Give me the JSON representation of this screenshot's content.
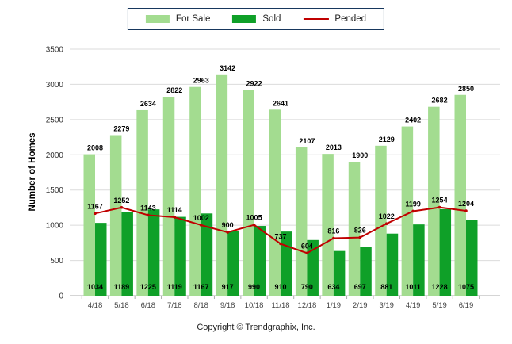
{
  "legend": {
    "border_color": "#17375D",
    "items": [
      {
        "label": "For Sale",
        "swatch": "bar",
        "color": "#A3DC90"
      },
      {
        "label": "Sold",
        "swatch": "bar",
        "color": "#0FA028"
      },
      {
        "label": "Pended",
        "swatch": "line",
        "color": "#C00000"
      }
    ]
  },
  "chart_data": {
    "type": "bar",
    "title": "",
    "categories": [
      "4/18",
      "5/18",
      "6/18",
      "7/18",
      "8/18",
      "9/18",
      "10/18",
      "11/18",
      "12/18",
      "1/19",
      "2/19",
      "3/19",
      "4/19",
      "5/19",
      "6/19"
    ],
    "series": [
      {
        "name": "For Sale",
        "type": "bar",
        "color": "#A3DC90",
        "label_position": "above",
        "values": [
          2008,
          2279,
          2634,
          2822,
          2963,
          3142,
          2922,
          2641,
          2107,
          2013,
          1900,
          2129,
          2402,
          2682,
          2850
        ]
      },
      {
        "name": "Sold",
        "type": "bar",
        "color": "#0FA028",
        "label_position": "base",
        "values": [
          1034,
          1189,
          1225,
          1119,
          1167,
          917,
          990,
          910,
          790,
          634,
          697,
          881,
          1011,
          1228,
          1075
        ]
      },
      {
        "name": "Pended",
        "type": "line",
        "color": "#C00000",
        "label_position": "above",
        "values": [
          1167,
          1252,
          1143,
          1114,
          1002,
          900,
          1005,
          737,
          604,
          816,
          826,
          1022,
          1199,
          1254,
          1204
        ]
      }
    ],
    "xlabel": "",
    "ylabel": "Number of Homes",
    "ylim": [
      0,
      3500
    ],
    "ytick_step": 500,
    "grid": true,
    "legend_position": "top-center",
    "colors": {
      "gridline": "#DBDBDB",
      "axis_line": "#ABABAB",
      "tick": "#ABABAB"
    }
  },
  "footer": {
    "text": "Copyright © Trendgraphix, Inc."
  }
}
